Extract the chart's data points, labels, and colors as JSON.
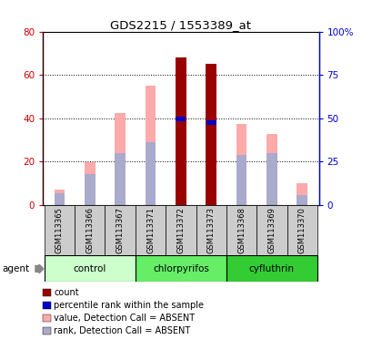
{
  "title": "GDS2215 / 1553389_at",
  "samples": [
    "GSM113365",
    "GSM113366",
    "GSM113367",
    "GSM113371",
    "GSM113372",
    "GSM113373",
    "GSM113368",
    "GSM113369",
    "GSM113370"
  ],
  "groups": [
    {
      "label": "control",
      "samples": [
        0,
        1,
        2
      ],
      "color": "#ccffcc"
    },
    {
      "label": "chlorpyrifos",
      "samples": [
        3,
        4,
        5
      ],
      "color": "#66ee66"
    },
    {
      "label": "cyfluthrin",
      "samples": [
        6,
        7,
        8
      ],
      "color": "#33cc33"
    }
  ],
  "value_absent": [
    7.0,
    19.5,
    42.5,
    55.0,
    null,
    null,
    37.5,
    32.5,
    10.0
  ],
  "rank_absent": [
    5.5,
    14.0,
    24.0,
    29.0,
    null,
    null,
    23.0,
    24.0,
    4.5
  ],
  "count_red": [
    null,
    null,
    null,
    null,
    68.0,
    65.0,
    null,
    null,
    null
  ],
  "percentile_blue": [
    null,
    null,
    null,
    null,
    39.5,
    38.0,
    null,
    null,
    null
  ],
  "ylim_left": [
    0,
    80
  ],
  "ylim_right": [
    0,
    100
  ],
  "left_ticks": [
    0,
    20,
    40,
    60,
    80
  ],
  "right_ticks": [
    0,
    25,
    50,
    75,
    100
  ],
  "left_tick_labels": [
    "0",
    "20",
    "40",
    "60",
    "80"
  ],
  "right_tick_labels": [
    "0",
    "25",
    "50",
    "75",
    "100%"
  ],
  "left_color": "#cc0000",
  "right_color": "#0000cc",
  "bar_width": 0.35,
  "count_color": "#990000",
  "percentile_color": "#0000cc",
  "absent_value_color": "#ffaaaa",
  "absent_rank_color": "#aaaacc",
  "legend_items": [
    {
      "color": "#990000",
      "label": "count"
    },
    {
      "color": "#0000cc",
      "label": "percentile rank within the sample"
    },
    {
      "color": "#ffaaaa",
      "label": "value, Detection Call = ABSENT"
    },
    {
      "color": "#aaaacc",
      "label": "rank, Detection Call = ABSENT"
    }
  ],
  "agent_label": "agent",
  "group_colors": [
    "#ccffcc",
    "#66ee66",
    "#33cc33"
  ]
}
